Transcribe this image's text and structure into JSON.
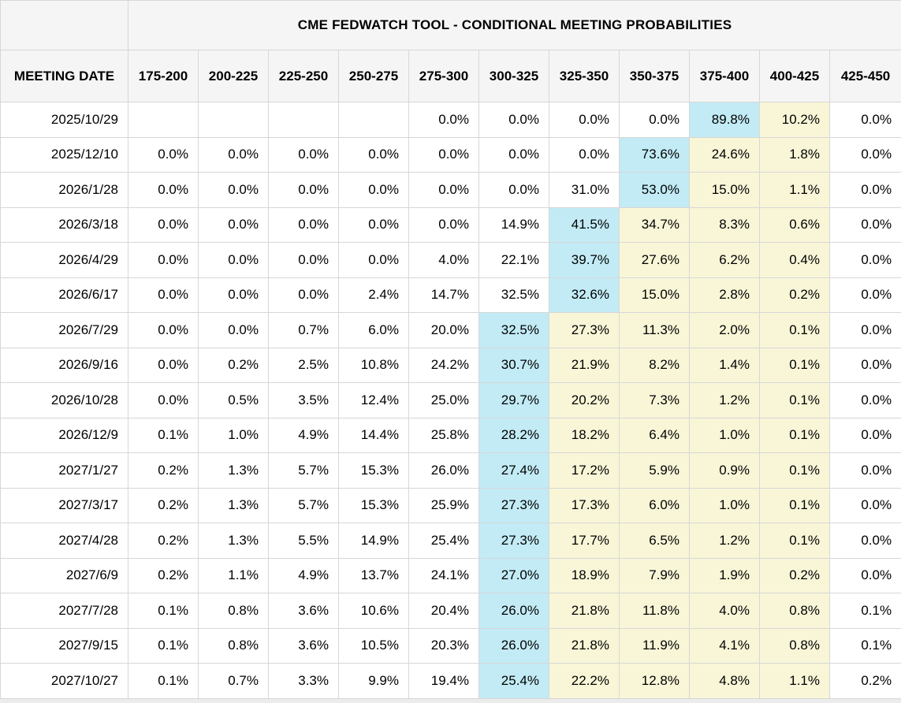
{
  "title": "CME FEDWATCH TOOL - CONDITIONAL MEETING PROBABILITIES",
  "colors": {
    "highlight_primary": "#c2ebf5",
    "highlight_secondary": "#f8f6d7",
    "header_bg": "#f5f5f5",
    "grid": "#d7d7d7"
  },
  "table": {
    "date_header": "MEETING DATE",
    "rate_headers": [
      "175-200",
      "200-225",
      "225-250",
      "250-275",
      "275-300",
      "300-325",
      "325-350",
      "350-375",
      "375-400",
      "400-425",
      "425-450"
    ],
    "rows": [
      {
        "date": "2025/10/29",
        "values": [
          "",
          "",
          "",
          "",
          "0.0%",
          "0.0%",
          "0.0%",
          "0.0%",
          "89.8%",
          "10.2%",
          "0.0%"
        ],
        "cyan_col": 8,
        "yellow_cols": [
          9
        ]
      },
      {
        "date": "2025/12/10",
        "values": [
          "0.0%",
          "0.0%",
          "0.0%",
          "0.0%",
          "0.0%",
          "0.0%",
          "0.0%",
          "73.6%",
          "24.6%",
          "1.8%",
          "0.0%"
        ],
        "cyan_col": 7,
        "yellow_cols": [
          8,
          9
        ]
      },
      {
        "date": "2026/1/28",
        "values": [
          "0.0%",
          "0.0%",
          "0.0%",
          "0.0%",
          "0.0%",
          "0.0%",
          "31.0%",
          "53.0%",
          "15.0%",
          "1.1%",
          "0.0%"
        ],
        "cyan_col": 7,
        "yellow_cols": [
          8,
          9
        ]
      },
      {
        "date": "2026/3/18",
        "values": [
          "0.0%",
          "0.0%",
          "0.0%",
          "0.0%",
          "0.0%",
          "14.9%",
          "41.5%",
          "34.7%",
          "8.3%",
          "0.6%",
          "0.0%"
        ],
        "cyan_col": 6,
        "yellow_cols": [
          7,
          8,
          9
        ]
      },
      {
        "date": "2026/4/29",
        "values": [
          "0.0%",
          "0.0%",
          "0.0%",
          "0.0%",
          "4.0%",
          "22.1%",
          "39.7%",
          "27.6%",
          "6.2%",
          "0.4%",
          "0.0%"
        ],
        "cyan_col": 6,
        "yellow_cols": [
          7,
          8,
          9
        ]
      },
      {
        "date": "2026/6/17",
        "values": [
          "0.0%",
          "0.0%",
          "0.0%",
          "2.4%",
          "14.7%",
          "32.5%",
          "32.6%",
          "15.0%",
          "2.8%",
          "0.2%",
          "0.0%"
        ],
        "cyan_col": 6,
        "yellow_cols": [
          7,
          8,
          9
        ]
      },
      {
        "date": "2026/7/29",
        "values": [
          "0.0%",
          "0.0%",
          "0.7%",
          "6.0%",
          "20.0%",
          "32.5%",
          "27.3%",
          "11.3%",
          "2.0%",
          "0.1%",
          "0.0%"
        ],
        "cyan_col": 5,
        "yellow_cols": [
          6,
          7,
          8,
          9
        ]
      },
      {
        "date": "2026/9/16",
        "values": [
          "0.0%",
          "0.2%",
          "2.5%",
          "10.8%",
          "24.2%",
          "30.7%",
          "21.9%",
          "8.2%",
          "1.4%",
          "0.1%",
          "0.0%"
        ],
        "cyan_col": 5,
        "yellow_cols": [
          6,
          7,
          8,
          9
        ]
      },
      {
        "date": "2026/10/28",
        "values": [
          "0.0%",
          "0.5%",
          "3.5%",
          "12.4%",
          "25.0%",
          "29.7%",
          "20.2%",
          "7.3%",
          "1.2%",
          "0.1%",
          "0.0%"
        ],
        "cyan_col": 5,
        "yellow_cols": [
          6,
          7,
          8,
          9
        ]
      },
      {
        "date": "2026/12/9",
        "values": [
          "0.1%",
          "1.0%",
          "4.9%",
          "14.4%",
          "25.8%",
          "28.2%",
          "18.2%",
          "6.4%",
          "1.0%",
          "0.1%",
          "0.0%"
        ],
        "cyan_col": 5,
        "yellow_cols": [
          6,
          7,
          8,
          9
        ]
      },
      {
        "date": "2027/1/27",
        "values": [
          "0.2%",
          "1.3%",
          "5.7%",
          "15.3%",
          "26.0%",
          "27.4%",
          "17.2%",
          "5.9%",
          "0.9%",
          "0.1%",
          "0.0%"
        ],
        "cyan_col": 5,
        "yellow_cols": [
          6,
          7,
          8,
          9
        ]
      },
      {
        "date": "2027/3/17",
        "values": [
          "0.2%",
          "1.3%",
          "5.7%",
          "15.3%",
          "25.9%",
          "27.3%",
          "17.3%",
          "6.0%",
          "1.0%",
          "0.1%",
          "0.0%"
        ],
        "cyan_col": 5,
        "yellow_cols": [
          6,
          7,
          8,
          9
        ]
      },
      {
        "date": "2027/4/28",
        "values": [
          "0.2%",
          "1.3%",
          "5.5%",
          "14.9%",
          "25.4%",
          "27.3%",
          "17.7%",
          "6.5%",
          "1.2%",
          "0.1%",
          "0.0%"
        ],
        "cyan_col": 5,
        "yellow_cols": [
          6,
          7,
          8,
          9
        ]
      },
      {
        "date": "2027/6/9",
        "values": [
          "0.2%",
          "1.1%",
          "4.9%",
          "13.7%",
          "24.1%",
          "27.0%",
          "18.9%",
          "7.9%",
          "1.9%",
          "0.2%",
          "0.0%"
        ],
        "cyan_col": 5,
        "yellow_cols": [
          6,
          7,
          8,
          9
        ]
      },
      {
        "date": "2027/7/28",
        "values": [
          "0.1%",
          "0.8%",
          "3.6%",
          "10.6%",
          "20.4%",
          "26.0%",
          "21.8%",
          "11.8%",
          "4.0%",
          "0.8%",
          "0.1%"
        ],
        "cyan_col": 5,
        "yellow_cols": [
          6,
          7,
          8,
          9
        ]
      },
      {
        "date": "2027/9/15",
        "values": [
          "0.1%",
          "0.8%",
          "3.6%",
          "10.5%",
          "20.3%",
          "26.0%",
          "21.8%",
          "11.9%",
          "4.1%",
          "0.8%",
          "0.1%"
        ],
        "cyan_col": 5,
        "yellow_cols": [
          6,
          7,
          8,
          9
        ]
      },
      {
        "date": "2027/10/27",
        "values": [
          "0.1%",
          "0.7%",
          "3.3%",
          "9.9%",
          "19.4%",
          "25.4%",
          "22.2%",
          "12.8%",
          "4.8%",
          "1.1%",
          "0.2%"
        ],
        "cyan_col": 5,
        "yellow_cols": [
          6,
          7,
          8,
          9
        ]
      }
    ]
  }
}
